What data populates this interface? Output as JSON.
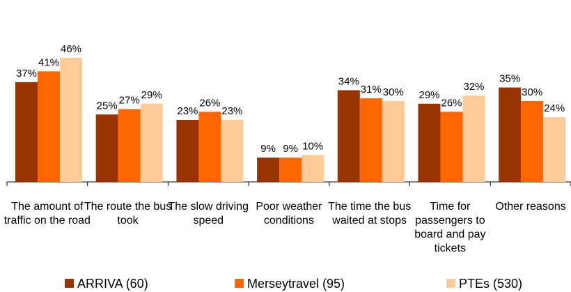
{
  "chart_data": {
    "type": "bar",
    "categories": [
      "The amount of traffic on the road",
      "The route the bus took",
      "The slow driving speed",
      "Poor weather conditions",
      "The time the bus waited at stops",
      "Time for passengers to board and pay tickets",
      "Other reasons"
    ],
    "series": [
      {
        "name": "ARRIVA (60)",
        "color": "#993300",
        "values": [
          37,
          25,
          23,
          9,
          34,
          29,
          35
        ],
        "value_labels": [
          "37%",
          "25%",
          "23%",
          "9%",
          "34%",
          "29%",
          "35%"
        ]
      },
      {
        "name": "Merseytravel (95)",
        "color": "#ff6600",
        "values": [
          41,
          27,
          26,
          9,
          31,
          26,
          30
        ],
        "value_labels": [
          "41%",
          "27%",
          "26%",
          "9%",
          "31%",
          "26%",
          "30%"
        ]
      },
      {
        "name": "PTEs (530)",
        "color": "#ffcc99",
        "values": [
          46,
          29,
          23,
          10,
          30,
          32,
          24
        ],
        "value_labels": [
          "46%",
          "29%",
          "23%",
          "10%",
          "30%",
          "32%",
          "24%"
        ]
      }
    ],
    "ylim": [
      0,
      50
    ],
    "legend": "bottom"
  }
}
